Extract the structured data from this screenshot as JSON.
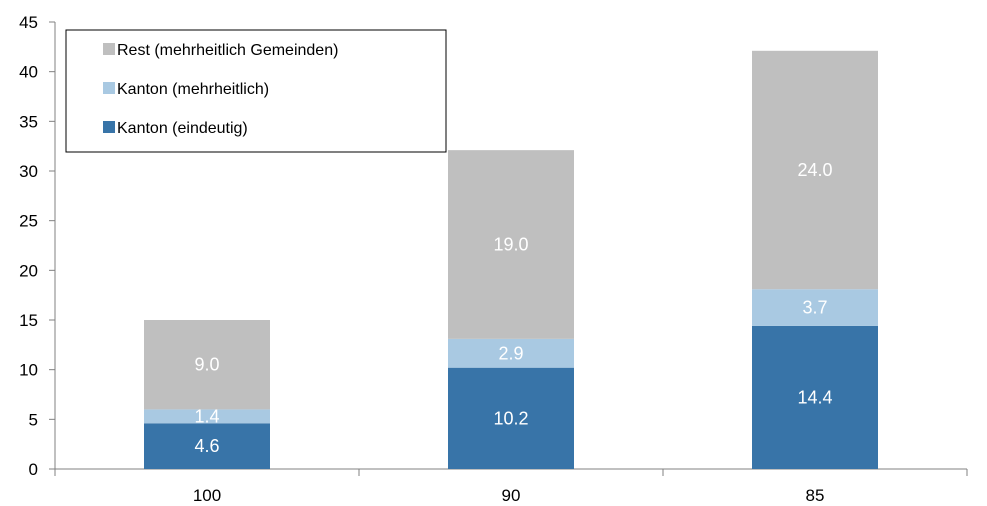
{
  "chart_data": {
    "type": "bar",
    "stacked": true,
    "categories": [
      "100",
      "90",
      "85"
    ],
    "series": [
      {
        "name": "Kanton (eindeutig)",
        "values": [
          4.6,
          10.2,
          14.4
        ],
        "color": "#3874a8",
        "label_color": "#ffffff"
      },
      {
        "name": "Kanton (mehrheitlich)",
        "values": [
          1.4,
          2.9,
          3.7
        ],
        "color": "#a9c9e2",
        "label_color": "#ffffff"
      },
      {
        "name": "Rest (mehrheitlich Gemeinden)",
        "values": [
          9.0,
          19.0,
          24.0
        ],
        "color": "#bfbfbf",
        "label_color": "#ffffff"
      }
    ],
    "data_labels": [
      [
        "4.6",
        "10.2",
        "14.4"
      ],
      [
        "1.4",
        "2.9",
        "3.7"
      ],
      [
        "9.0",
        "19.0",
        "24.0"
      ]
    ],
    "ylim": [
      0,
      45
    ],
    "yticks": [
      "0",
      "5",
      "10",
      "15",
      "20",
      "25",
      "30",
      "35",
      "40",
      "45"
    ],
    "title": "",
    "xlabel": "",
    "ylabel": "",
    "grid": false,
    "legend_position": "top-left",
    "legend_order": [
      "Rest (mehrheitlich Gemeinden)",
      "Kanton (mehrheitlich)",
      "Kanton (eindeutig)"
    ],
    "axis_color": "#808080"
  }
}
